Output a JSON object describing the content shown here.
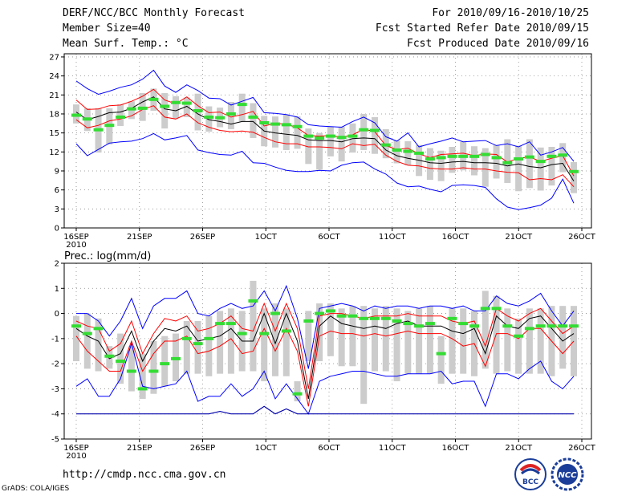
{
  "header": {
    "title": "DERF/NCC/BCC Monthly Forecast",
    "member_size": "Member Size=40",
    "variable": "Mean Surf. Temp.: °C",
    "period": "For 2010/09/16-2010/10/25",
    "fcst_started": "Fcst Started Refer Date 2010/09/15",
    "fcst_produced": "Fcst Produced Date 2010/09/16"
  },
  "footer": {
    "url": "http://cmdp.ncc.cma.gov.cn",
    "grads": "GrADS: COLA/IGES",
    "logo_bcc": "BCC",
    "logo_ncc": "NCC"
  },
  "colors": {
    "max_min": "#0000ff",
    "spread": "#ff0000",
    "mean": "#000000",
    "median": "#33dd33",
    "box": "#cccccc",
    "floor": "#0000aa"
  },
  "chart_data": [
    {
      "type": "box",
      "title": "Mean Surf. Temp.: °C",
      "x_ticks": [
        "16SEP\n2010",
        "21SEP",
        "26SEP",
        "1OCT",
        "6OCT",
        "11OCT",
        "16OCT",
        "21OCT",
        "26OCT"
      ],
      "y_ticks": [
        0,
        3,
        6,
        9,
        12,
        15,
        18,
        21,
        24,
        27
      ],
      "ylim": [
        0,
        27.5
      ],
      "days": 40,
      "series": [
        {
          "name": "max",
          "values": [
            23.2,
            22,
            21.1,
            21.6,
            22.2,
            22.6,
            23.5,
            24.9,
            22.4,
            21.4,
            22.6,
            21.7,
            20.5,
            20.4,
            19.4,
            20,
            20.6,
            18.2,
            18.1,
            17.9,
            17.5,
            16.3,
            16.1,
            16,
            15.9,
            16.8,
            17.5,
            16.6,
            14.4,
            13.7,
            15,
            12.8,
            13.3,
            13.7,
            14.2,
            13.6,
            13.7,
            13.8,
            13,
            13.3,
            12.8,
            13.6,
            11.5,
            12,
            12.7,
            10.5
          ]
        },
        {
          "name": "p_high",
          "values": [
            20.2,
            18.7,
            18.8,
            19.3,
            19.4,
            20,
            20.8,
            21.9,
            20.2,
            19.6,
            20.7,
            19.3,
            18.2,
            18.3,
            17.5,
            17.9,
            18.4,
            16.1,
            16.5,
            16.4,
            15.8,
            14.6,
            14.5,
            14.6,
            14.3,
            14.7,
            15.6,
            15.2,
            13,
            12.4,
            12.6,
            11.7,
            11.1,
            11.6,
            11.7,
            11.8,
            11.4,
            11.7,
            11.6,
            10.4,
            11,
            11.2,
            10.5,
            11,
            11.4,
            8.2
          ]
        },
        {
          "name": "mean",
          "values": [
            18.3,
            17.1,
            17.6,
            18.2,
            18.3,
            18.9,
            19.9,
            20.7,
            18.8,
            18.5,
            19.2,
            18,
            17.1,
            16.8,
            16.4,
            16.8,
            16.8,
            15.3,
            15,
            14.8,
            14.6,
            13.9,
            13.8,
            13.8,
            13.6,
            14.1,
            14.2,
            14.1,
            12.3,
            11.4,
            11,
            10.7,
            10.3,
            10.2,
            10.4,
            10.5,
            10.3,
            10.3,
            10.2,
            9.8,
            10.1,
            9.7,
            9.5,
            10,
            10.2,
            7.4
          ]
        },
        {
          "name": "p_low",
          "values": [
            17.1,
            15.8,
            16.2,
            16.9,
            17.2,
            17.7,
            18.7,
            19.3,
            17.5,
            17.2,
            18,
            16.6,
            15.9,
            15.4,
            15.2,
            15.3,
            15.1,
            14.3,
            13.6,
            13.3,
            13.3,
            12.8,
            12.8,
            12.7,
            12.5,
            13.3,
            13,
            13.2,
            11.5,
            10.5,
            9.9,
            9.8,
            9.4,
            9.3,
            9.3,
            9.5,
            9.3,
            9.3,
            9,
            8.8,
            8.7,
            7.6,
            7.8,
            7.6,
            8.4,
            6.5
          ]
        },
        {
          "name": "min",
          "values": [
            13.3,
            11.4,
            12.4,
            13.4,
            13.6,
            13.7,
            14.1,
            14.9,
            13.9,
            14.2,
            14.6,
            12.3,
            11.9,
            11.6,
            11.5,
            12.1,
            10.3,
            10.2,
            9.6,
            9.1,
            8.9,
            8.9,
            9.1,
            9,
            9.9,
            10.3,
            10.4,
            9.3,
            8.5,
            7.1,
            6.5,
            6.6,
            6.1,
            5.7,
            6.7,
            6.8,
            6.7,
            6.4,
            4.6,
            3.3,
            2.9,
            3.2,
            3.6,
            4.7,
            7.7,
            3.9
          ]
        }
      ],
      "median": [
        17.8,
        17.2,
        15.5,
        16.2,
        17.5,
        18.8,
        18.9,
        20.3,
        19.2,
        19.8,
        19.7,
        18.5,
        17.5,
        17.4,
        18,
        19.5,
        17.5,
        16.6,
        16.4,
        16.3,
        16,
        14.5,
        14.2,
        14.5,
        14.3,
        14.5,
        15.5,
        15.4,
        13.1,
        12.3,
        12.1,
        11.8,
        10.9,
        11.1,
        11.3,
        11.3,
        11.3,
        11.6,
        11.1,
        10.3,
        10.9,
        11.2,
        10.5,
        11.3,
        11.5,
        8.9
      ],
      "box_low": [
        16.5,
        15.3,
        11.9,
        13.2,
        16.1,
        17.2,
        16.9,
        18.5,
        15.7,
        17.3,
        17.5,
        15.4,
        15.2,
        15.9,
        15.6,
        16.8,
        14.2,
        12.9,
        12.7,
        12.3,
        12.5,
        10.1,
        9.2,
        11.3,
        10.5,
        11.9,
        12.3,
        11.7,
        11,
        10.2,
        9.9,
        8.2,
        7.6,
        7.4,
        8.7,
        9.1,
        8.3,
        6.5,
        7.8,
        7.1,
        5.8,
        6.3,
        5.9,
        6.7,
        8.8,
        5.5
      ],
      "box_high": [
        19.5,
        18.9,
        18.9,
        18.9,
        19.5,
        20,
        21.3,
        22,
        21.3,
        20.8,
        20.6,
        21.2,
        19.2,
        19,
        19.9,
        21.2,
        19.7,
        17.7,
        17.6,
        17.9,
        17.6,
        15.7,
        15,
        16,
        16,
        16.5,
        18,
        17.5,
        15.6,
        13.8,
        13.7,
        13.1,
        12.6,
        12.2,
        12.8,
        13.6,
        12.9,
        12.6,
        13.1,
        14,
        13,
        14,
        12.7,
        12.8,
        13.4,
        10.4
      ]
    },
    {
      "type": "box",
      "title": "Prec.: log(mm/d)",
      "x_ticks": [
        "16SEP\n2010",
        "21SEP",
        "26SEP",
        "1OCT",
        "6OCT",
        "11OCT",
        "16OCT",
        "21OCT",
        "26OCT"
      ],
      "y_ticks": [
        -5,
        -4,
        -3,
        -2,
        -1,
        0,
        1,
        2
      ],
      "ylim": [
        -5,
        2
      ],
      "days": 40,
      "series": [
        {
          "name": "max",
          "values": [
            0,
            0,
            -0.3,
            -0.9,
            -0.3,
            0.6,
            -0.6,
            0.3,
            0.6,
            0.6,
            0.9,
            0,
            -0.1,
            0.2,
            0.4,
            0.2,
            0.3,
            0.9,
            0.1,
            1.1,
            -0.2,
            -2.2,
            0.2,
            0.3,
            0.4,
            0.3,
            0.1,
            0.3,
            0.2,
            0.3,
            0.3,
            0.2,
            0.3,
            0.3,
            0.2,
            0.3,
            0.1,
            0.1,
            0.7,
            0.4,
            0.3,
            0.5,
            0.8,
            0.1,
            -0.5,
            0.1
          ]
        },
        {
          "name": "p_high",
          "values": [
            -0.3,
            -0.5,
            -0.6,
            -1.5,
            -1.2,
            -0.3,
            -1.6,
            -0.8,
            -0.2,
            -0.3,
            -0.1,
            -0.7,
            -0.6,
            -0.4,
            -0.1,
            -0.6,
            -0.7,
            0.4,
            -0.7,
            0.4,
            -0.6,
            -3,
            -0.1,
            0,
            0,
            -0.1,
            -0.2,
            -0.1,
            -0.1,
            -0.1,
            0,
            -0.1,
            -0.1,
            -0.1,
            -0.3,
            -0.4,
            -0.3,
            -1.3,
            0.2,
            -0.1,
            -0.3,
            0,
            0.2,
            -0.3,
            -0.8,
            -0.5
          ]
        },
        {
          "name": "mean",
          "values": [
            -0.6,
            -0.9,
            -1.1,
            -1.8,
            -1.6,
            -0.7,
            -1.9,
            -1.1,
            -0.6,
            -0.7,
            -0.5,
            -1.1,
            -1,
            -0.9,
            -0.6,
            -1.1,
            -1.1,
            0,
            -1.2,
            0,
            -1.1,
            -3.4,
            -0.5,
            -0.1,
            -0.4,
            -0.5,
            -0.6,
            -0.5,
            -0.6,
            -0.4,
            -0.3,
            -0.5,
            -0.5,
            -0.5,
            -0.7,
            -0.8,
            -0.6,
            -1.6,
            -0.1,
            -0.5,
            -0.6,
            -0.2,
            -0.1,
            -0.6,
            -1.1,
            -0.8
          ]
        },
        {
          "name": "p_low",
          "values": [
            -0.9,
            -1.5,
            -1.9,
            -2.3,
            -2.3,
            -1.1,
            -2.3,
            -1.6,
            -1.1,
            -1.1,
            -0.9,
            -1.6,
            -1.5,
            -1.3,
            -1,
            -1.6,
            -1.5,
            -0.6,
            -1.5,
            -0.6,
            -1.5,
            -3.7,
            -0.9,
            -0.7,
            -0.8,
            -0.8,
            -0.9,
            -0.8,
            -0.9,
            -0.8,
            -0.7,
            -0.8,
            -0.8,
            -0.8,
            -1,
            -1.3,
            -1.2,
            -2.1,
            -0.8,
            -0.8,
            -1,
            -0.6,
            -0.6,
            -1.1,
            -1.6,
            -1.1
          ]
        },
        {
          "name": "min",
          "values": [
            -2.9,
            -2.6,
            -3.3,
            -3.3,
            -2.6,
            -1.2,
            -2.9,
            -3,
            -2.9,
            -2.8,
            -2.3,
            -3.5,
            -3.3,
            -3.3,
            -2.8,
            -3.3,
            -3,
            -2.3,
            -3.4,
            -2.8,
            -3.4,
            -4,
            -2.7,
            -2.5,
            -2.4,
            -2.3,
            -2.3,
            -2.4,
            -2.5,
            -2.5,
            -2.4,
            -2.4,
            -2.4,
            -2.3,
            -2.8,
            -2.7,
            -2.7,
            -3.7,
            -2.4,
            -2.4,
            -2.6,
            -2.2,
            -1.9,
            -2.7,
            -3,
            -2.5
          ]
        },
        {
          "name": "floor",
          "values": [
            -4,
            -4,
            -4,
            -4,
            -4,
            -4,
            -4,
            -4,
            -4,
            -4,
            -4,
            -4,
            -4,
            -3.9,
            -4,
            -4,
            -4,
            -3.7,
            -4,
            -3.8,
            -4,
            -4,
            -4,
            -4,
            -4,
            -4,
            -4,
            -4,
            -4,
            -4,
            -4,
            -4,
            -4,
            -4,
            -4,
            -4,
            -4,
            -4,
            -4,
            -4,
            -4,
            -4,
            -4,
            -4,
            -4,
            -4
          ]
        }
      ],
      "median": [
        -0.5,
        -0.8,
        -0.6,
        -1.7,
        -1.9,
        -2.3,
        -3,
        -2.3,
        -2,
        -1.8,
        -1,
        -1.2,
        -1,
        -0.4,
        -0.4,
        -0.8,
        0.5,
        -0.8,
        0,
        -0.7,
        -3.2,
        -0.3,
        0,
        0.1,
        -0.1,
        -0.1,
        -0.2,
        -0.2,
        -0.2,
        -0.3,
        -0.4,
        -0.5,
        -0.4,
        -1.6,
        -0.2,
        -0.4,
        -0.5,
        0.2,
        0.2,
        -0.5,
        -0.9,
        -0.6,
        -0.5,
        -0.5,
        -0.5,
        -0.5
      ],
      "box_low": [
        -1.9,
        -2.2,
        -2.3,
        -2.2,
        -2.8,
        -3.1,
        -3.4,
        -3.2,
        -2.9,
        -2.7,
        -2.4,
        -2.4,
        -2.5,
        -2.4,
        -2.4,
        -2.3,
        -2.3,
        -2.7,
        -2.5,
        -2.5,
        -3.5,
        -1.9,
        -1.9,
        -1.7,
        -2.1,
        -2.1,
        -3.6,
        -2.3,
        -2.3,
        -2.7,
        -2.4,
        -2.4,
        -2.4,
        -2.8,
        -2.4,
        -2.4,
        -2.5,
        -2.2,
        -2.4,
        -2.3,
        -2.4,
        -2.4,
        -2.4,
        -2.5,
        -2.2,
        -2.5
      ],
      "box_high": [
        -0.1,
        0,
        -0.2,
        -1.3,
        -0.8,
        -1.3,
        -1.6,
        -1.1,
        -0.9,
        -0.8,
        -0.3,
        -0.3,
        -0.1,
        0.1,
        0.2,
        0.1,
        1.3,
        0.2,
        0.4,
        0.2,
        -2.7,
        0.1,
        0.4,
        0.4,
        0.2,
        0.3,
        0.3,
        0.2,
        0.3,
        0.2,
        0.1,
        0.2,
        0.3,
        -0.9,
        0.2,
        0.2,
        0.1,
        0.9,
        0.7,
        0.2,
        -0.2,
        0.2,
        0.2,
        0.3,
        0.3,
        0.3
      ]
    }
  ]
}
